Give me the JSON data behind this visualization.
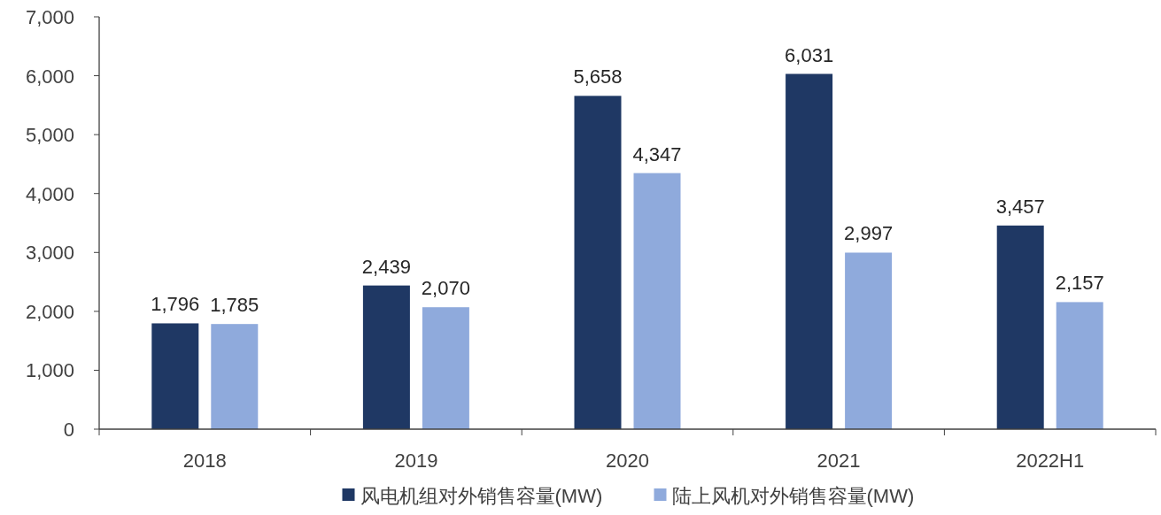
{
  "chart_data": {
    "type": "bar",
    "categories": [
      "2018",
      "2019",
      "2020",
      "2021",
      "2022H1"
    ],
    "series": [
      {
        "name": "风电机组对外销售容量(MW)",
        "color": "#1f3864",
        "values": [
          1796,
          2439,
          5658,
          6031,
          3457
        ],
        "value_labels": [
          "1,796",
          "2,439",
          "5,658",
          "6,031",
          "3,457"
        ]
      },
      {
        "name": "陆上风机对外销售容量(MW)",
        "color": "#8faadc",
        "values": [
          1785,
          2070,
          4347,
          2997,
          2157
        ],
        "value_labels": [
          "1,785",
          "2,070",
          "4,347",
          "2,997",
          "2,157"
        ]
      }
    ],
    "ylim": [
      0,
      7000
    ],
    "yticks": [
      0,
      {
        "value": 1000,
        "label": "1,000"
      },
      {
        "value": 2000,
        "label": "2,000"
      },
      {
        "value": 3000,
        "label": "3,000"
      },
      {
        "value": 4000,
        "label": "4,000"
      },
      {
        "value": 5000,
        "label": "5,000"
      },
      {
        "value": 6000,
        "label": "6,000"
      },
      {
        "value": 7000,
        "label": "7,000"
      }
    ],
    "grid": false,
    "legend": "bottom"
  }
}
